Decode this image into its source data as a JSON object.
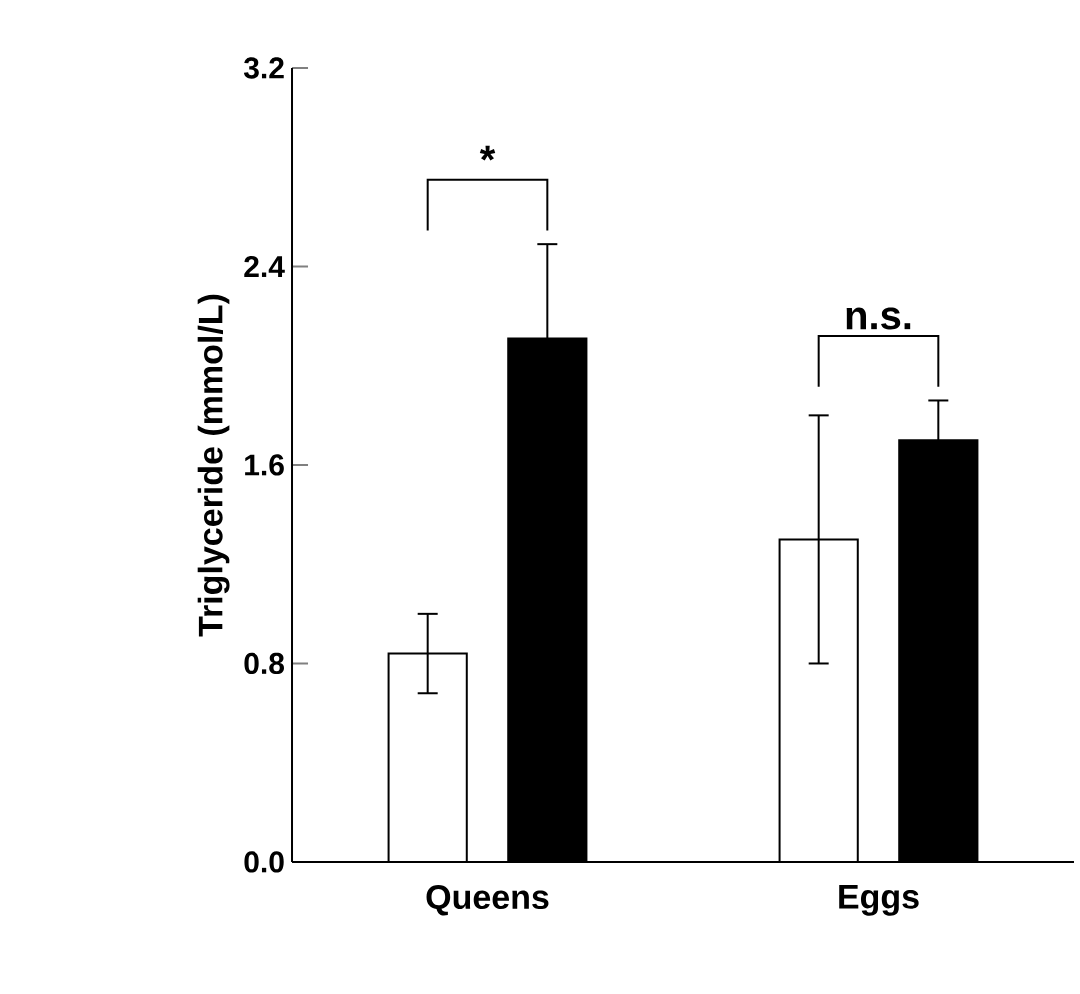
{
  "chart_data": {
    "type": "bar",
    "ylabel": "Triglyceride (mmol/L)",
    "categories": [
      "Queens",
      "Eggs"
    ],
    "series": [
      {
        "color": "#ffffff",
        "values": [
          0.84,
          1.3
        ],
        "errors": [
          0.16,
          0.5
        ]
      },
      {
        "color": "#000000",
        "values": [
          2.11,
          1.7
        ],
        "errors": [
          0.38,
          0.16
        ]
      }
    ],
    "ylim": [
      0.0,
      3.2
    ],
    "yticks": [
      {
        "value": 0,
        "label": "0.0"
      },
      {
        "value": 0.8,
        "label": "0.8"
      },
      {
        "value": 1.6,
        "label": "1.6"
      },
      {
        "value": 2.4,
        "label": "2.4"
      },
      {
        "value": 3.2,
        "label": "3.2"
      }
    ],
    "annotations": [
      "*",
      "n.s."
    ]
  }
}
